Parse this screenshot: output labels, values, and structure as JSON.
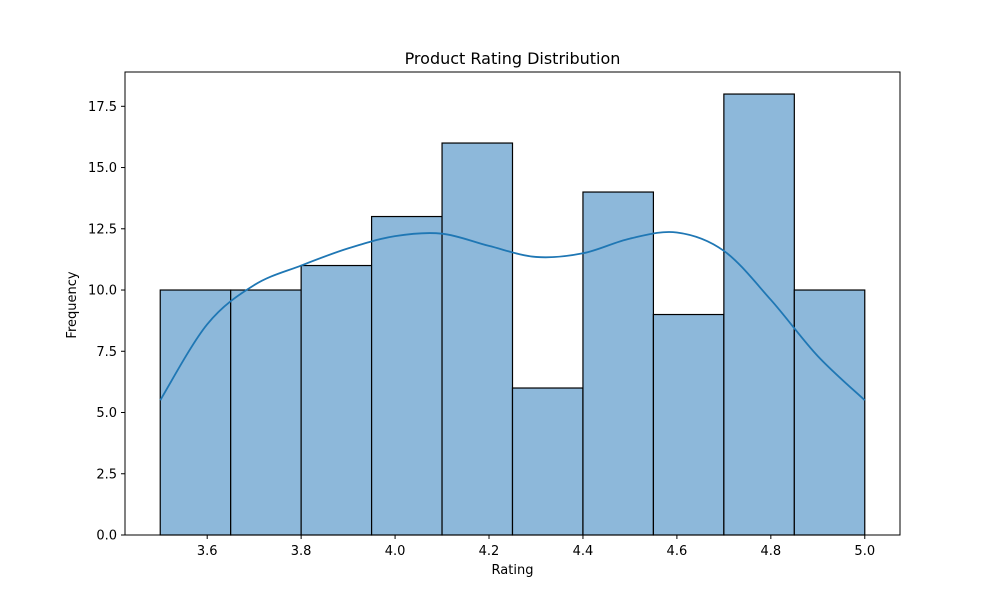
{
  "chart_data": {
    "type": "bar",
    "title": "Product Rating Distribution",
    "xlabel": "Rating",
    "ylabel": "Frequency",
    "bins": [
      {
        "start": 3.5,
        "end": 3.65,
        "count": 10
      },
      {
        "start": 3.65,
        "end": 3.8,
        "count": 10
      },
      {
        "start": 3.8,
        "end": 3.95,
        "count": 11
      },
      {
        "start": 3.95,
        "end": 4.1,
        "count": 13
      },
      {
        "start": 4.1,
        "end": 4.25,
        "count": 16
      },
      {
        "start": 4.25,
        "end": 4.4,
        "count": 6
      },
      {
        "start": 4.4,
        "end": 4.55,
        "count": 14
      },
      {
        "start": 4.55,
        "end": 4.7,
        "count": 9
      },
      {
        "start": 4.7,
        "end": 4.85,
        "count": 18
      },
      {
        "start": 4.85,
        "end": 5.0,
        "count": 10
      }
    ],
    "kde": {
      "x": [
        3.5,
        3.6,
        3.7,
        3.8,
        3.9,
        4.0,
        4.1,
        4.2,
        4.3,
        4.4,
        4.5,
        4.6,
        4.7,
        4.8,
        4.9,
        5.0
      ],
      "y": [
        5.5,
        8.6,
        10.2,
        11.0,
        11.7,
        12.2,
        12.3,
        11.8,
        11.35,
        11.5,
        12.1,
        12.35,
        11.6,
        9.6,
        7.3,
        5.5
      ]
    },
    "xlim": [
      3.425,
      5.075
    ],
    "ylim": [
      0,
      18.9
    ],
    "xticks": [
      "3.6",
      "3.8",
      "4.0",
      "4.2",
      "4.4",
      "4.6",
      "4.8",
      "5.0"
    ],
    "yticks": [
      "0.0",
      "2.5",
      "5.0",
      "7.5",
      "10.0",
      "12.5",
      "15.0",
      "17.5"
    ],
    "grid": false,
    "bar_color": "#8db8da",
    "bar_edge_color": "#000000",
    "line_color": "#1f77b4"
  }
}
